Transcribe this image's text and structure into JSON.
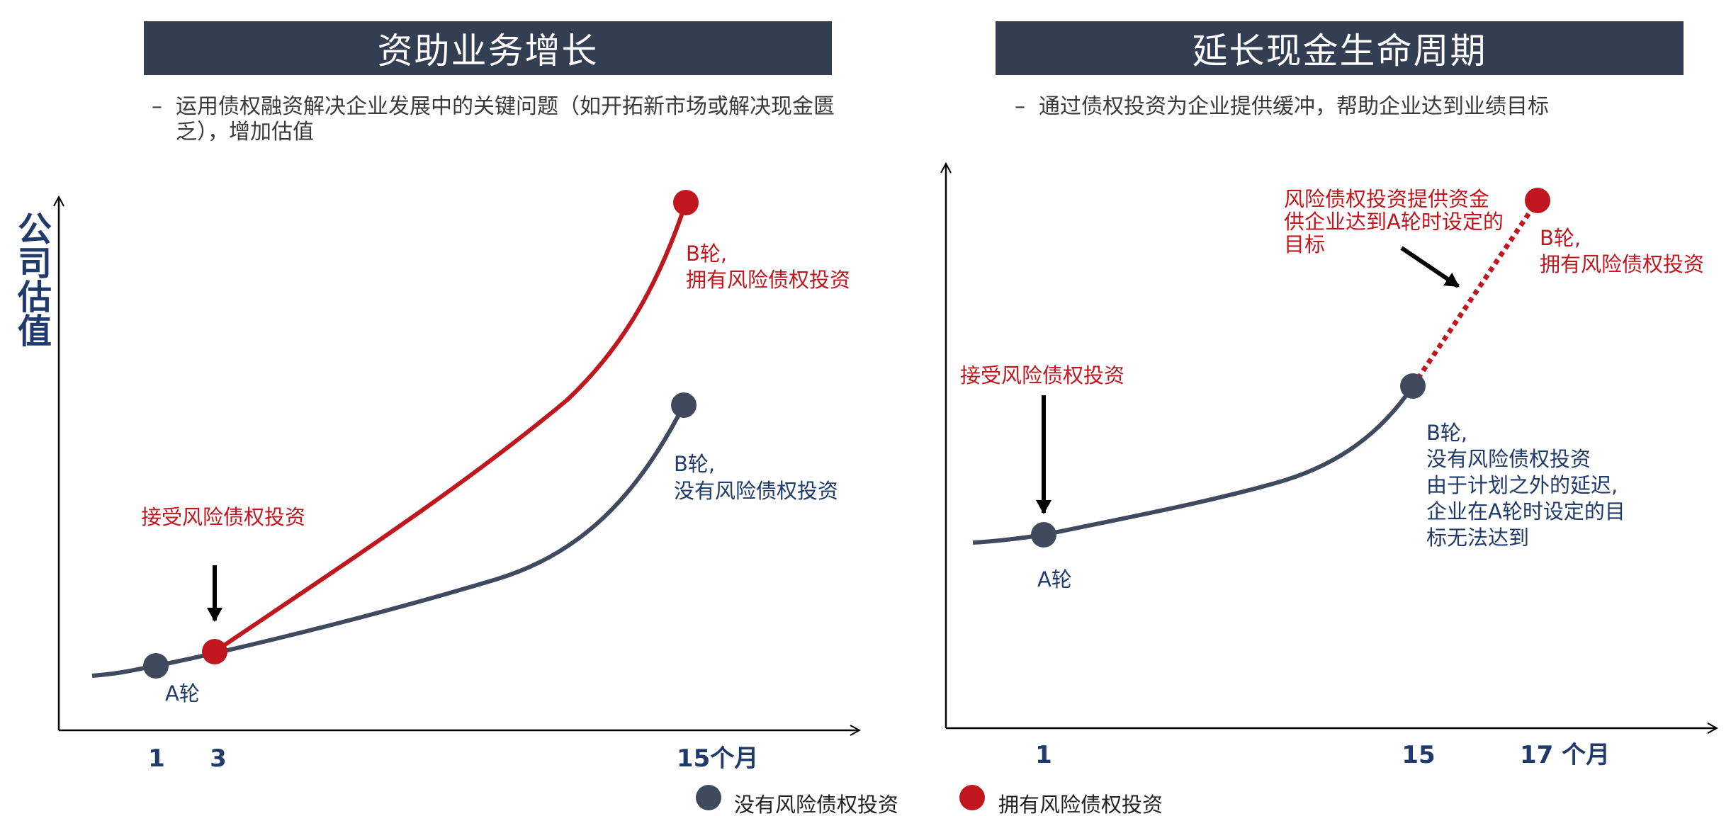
{
  "left_panel": {
    "title": "资助业务增长",
    "bullet_dash": "–",
    "bullet": "运用债权融资解决企业发展中的关键问题（如开拓新市场或解决现金匮乏），增加估值",
    "y_axis_label": "公司估值",
    "x_ticks": [
      "1",
      "3",
      "15个月"
    ],
    "annotations": {
      "accept_investment": "接受风险债权投资",
      "round_a": "A轮",
      "round_b_with_line1": "B轮,",
      "round_b_with_line2": "拥有风险债权投资",
      "round_b_without_line1": "B轮,",
      "round_b_without_line2": "没有风险债权投资"
    }
  },
  "right_panel": {
    "title": "延长现金生命周期",
    "bullet_dash": "–",
    "bullet": "通过债权投资为企业提供缓冲，帮助企业达到业绩目标",
    "x_ticks": [
      "1",
      "15",
      "17 个月"
    ],
    "annotations": {
      "accept_investment": "接受风险债权投资",
      "round_a": "A轮",
      "provides_line1": "风险债权投资提供资金",
      "provides_line2": "供企业达到A轮时设定的",
      "provides_line3": "目标",
      "round_b_with_line1": "B轮,",
      "round_b_with_line2": "拥有风险债权投资",
      "round_b_without_line1": "B轮,",
      "round_b_without_line2": "没有风险债权投资",
      "round_b_without_line3": "由于计划之外的延迟,",
      "round_b_without_line4": "企业在A轮时设定的目",
      "round_b_without_line5": "标无法达到"
    }
  },
  "legend": {
    "without": "没有风险债权投资",
    "with": "拥有风险债权投资"
  },
  "colors": {
    "navy": "#3f4a5e",
    "red": "#c0161d",
    "banner": "#343e52",
    "label_navy": "#1f3a6b"
  }
}
